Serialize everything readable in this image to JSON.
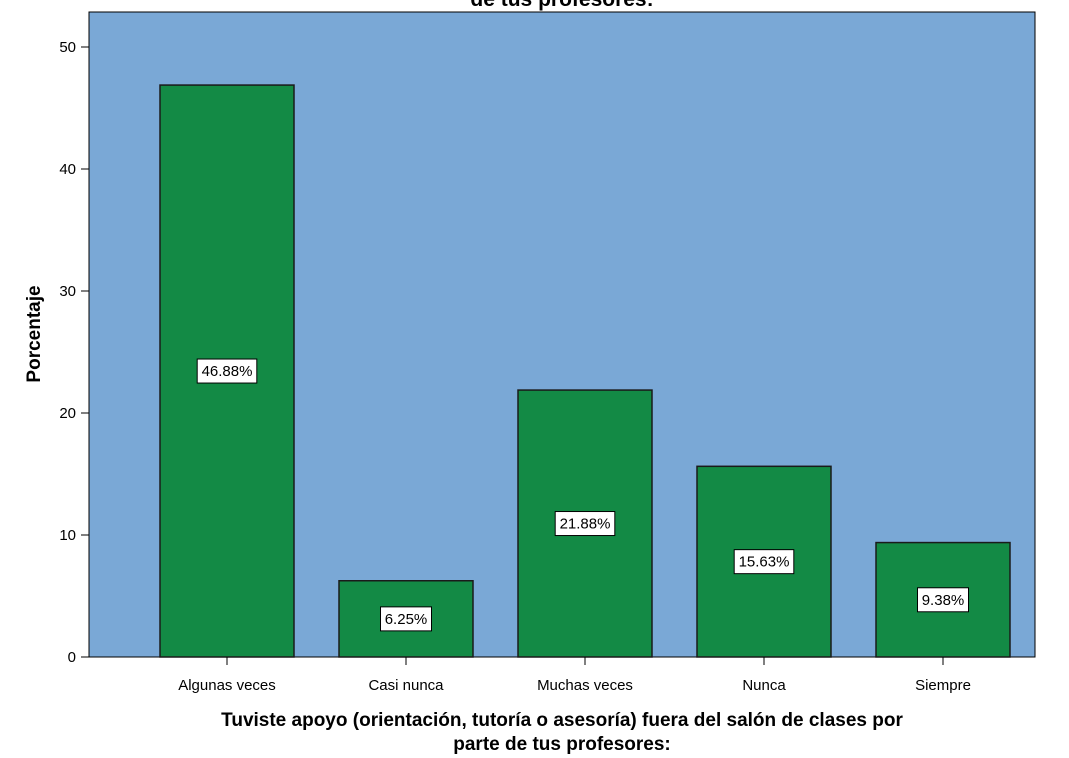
{
  "chart_data": {
    "type": "bar",
    "title": "de tus profesores:",
    "xlabel_lines": [
      "Tuviste apoyo (orientación, tutoría o asesoría) fuera del salón de clases por",
      "parte de tus profesores:"
    ],
    "ylabel": "Porcentaje",
    "categories": [
      "Algunas veces",
      "Casi nunca",
      "Muchas veces",
      "Nunca",
      "Siempre"
    ],
    "values": [
      46.88,
      6.25,
      21.88,
      15.63,
      9.38
    ],
    "value_labels": [
      "46.88%",
      "6.25%",
      "21.88%",
      "15.63%",
      "9.38%"
    ],
    "ylim": [
      0,
      52
    ],
    "yticks": [
      0,
      10,
      20,
      30,
      40,
      50
    ],
    "ytick_labels": [
      "0",
      "10",
      "20",
      "30",
      "40",
      "50"
    ],
    "grid": false,
    "colors": {
      "plot_background": "#7aa8d6",
      "bar_fill": "#138a45",
      "bar_stroke": "#1a1a1a"
    }
  }
}
